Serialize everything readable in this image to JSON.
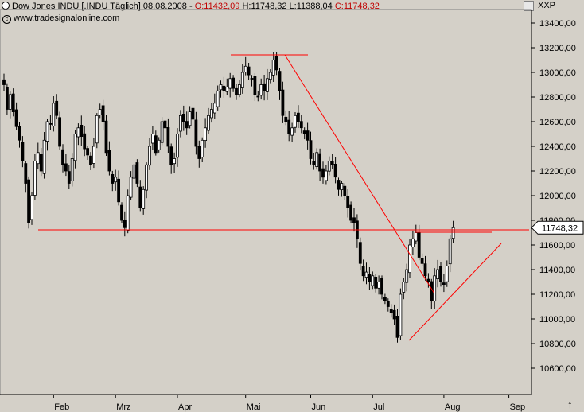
{
  "header": {
    "symbol": "Dow Jones INDU [.INDU  Täglich] 08.08.2008 -",
    "open_label": "O:11432,09",
    "hl_label": "H:11748,32 L:11388,04",
    "close_label": "C:11748,32"
  },
  "copyright": "www.tradesignalonline.com",
  "toolbar_label": "XXP",
  "last_price_label": "11748,32",
  "up_arrow": "↑",
  "colors": {
    "background": "#d4d0c8",
    "line": "#ff0000",
    "candle_up": "#ffffff",
    "candle_down": "#000000",
    "axis": "#000000"
  },
  "chart_data": {
    "type": "candlestick",
    "ylim": [
      10400,
      13500
    ],
    "y_ticks": [
      10600,
      10800,
      11000,
      11200,
      11400,
      11600,
      11800,
      12000,
      12200,
      12400,
      12600,
      12800,
      13000,
      13200,
      13400
    ],
    "y_tick_labels": [
      "10600,00",
      "10800,00",
      "11000,00",
      "11200,00",
      "11400,00",
      "11600,00",
      "11800,00",
      "12000,00",
      "12200,00",
      "12400,00",
      "12600,00",
      "12800,00",
      "13000,00",
      "13200,00",
      "13400,00"
    ],
    "x_tick_labels": [
      {
        "label": "Feb",
        "index": 16
      },
      {
        "label": "Mrz",
        "index": 36
      },
      {
        "label": "Apr",
        "index": 56
      },
      {
        "label": "Mai",
        "index": 78
      },
      {
        "label": "Jun",
        "index": 99
      },
      {
        "label": "Jul",
        "index": 119
      },
      {
        "label": "Aug",
        "index": 142
      },
      {
        "label": "Sep",
        "index": 163
      }
    ],
    "n_slots": 170,
    "closes": [
      12900,
      12700,
      12820,
      12680,
      12560,
      12450,
      12280,
      12100,
      11780,
      12000,
      12280,
      12350,
      12200,
      12450,
      12600,
      12580,
      12750,
      12650,
      12400,
      12250,
      12200,
      12100,
      12300,
      12500,
      12550,
      12480,
      12380,
      12330,
      12250,
      12400,
      12650,
      12700,
      12600,
      12350,
      12200,
      12100,
      12150,
      11950,
      11800,
      11740,
      12000,
      12150,
      12250,
      12100,
      11900,
      12050,
      12250,
      12400,
      12500,
      12350,
      12450,
      12600,
      12550,
      12400,
      12250,
      12300,
      12500,
      12650,
      12600,
      12550,
      12680,
      12620,
      12400,
      12300,
      12450,
      12550,
      12650,
      12700,
      12750,
      12850,
      12900,
      12850,
      12880,
      12950,
      12870,
      12820,
      12900,
      13000,
      13050,
      12980,
      12950,
      12820,
      12800,
      12900,
      12850,
      12950,
      13000,
      13100,
      13020,
      12850,
      12650,
      12600,
      12500,
      12550,
      12650,
      12600,
      12550,
      12500,
      12450,
      12300,
      12250,
      12350,
      12200,
      12150,
      12200,
      12280,
      12250,
      12150,
      12050,
      12100,
      12000,
      11900,
      11800,
      11780,
      11650,
      11450,
      11350,
      11380,
      11300,
      11350,
      11250,
      11300,
      11200,
      11150,
      11100,
      11050,
      11000,
      10850,
      11200,
      11300,
      11400,
      11600,
      11650,
      11700,
      11500,
      11450,
      11350,
      11300,
      11150,
      11350,
      11400,
      11300,
      11280,
      11430,
      11650,
      11740
    ]
  }
}
